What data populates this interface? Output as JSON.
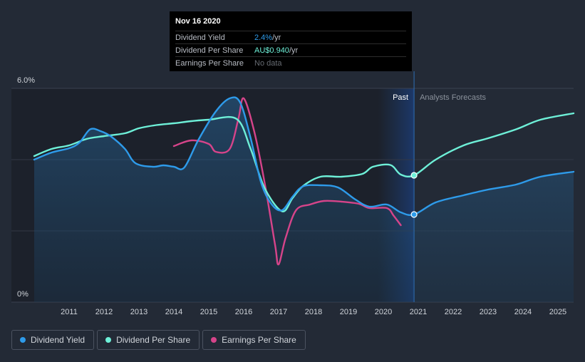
{
  "tooltip": {
    "date": "Nov 16 2020",
    "rows": [
      {
        "label": "Dividend Yield",
        "value": "2.4%",
        "unit": " /yr"
      },
      {
        "label": "Dividend Per Share",
        "value": "AU$0.940",
        "unit": " /yr"
      },
      {
        "label": "Earnings Per Share",
        "value": "No data",
        "unit": ""
      }
    ]
  },
  "legend": [
    {
      "label": "Dividend Yield",
      "color": "#2e9bea"
    },
    {
      "label": "Dividend Per Share",
      "color": "#6ef0d8"
    },
    {
      "label": "Earnings Per Share",
      "color": "#d6448a"
    }
  ],
  "chart_data": {
    "type": "line",
    "title": "",
    "xlabel": "",
    "ylabel": "",
    "y_tick_labels": [
      "6.0%",
      "0%"
    ],
    "ylim": [
      0,
      6.0
    ],
    "xlim": [
      2010.0,
      2025.45
    ],
    "x_ticks": [
      "2011",
      "2012",
      "2013",
      "2014",
      "2015",
      "2016",
      "2017",
      "2018",
      "2019",
      "2020",
      "2021",
      "2022",
      "2023",
      "2024",
      "2025"
    ],
    "past_label": "Past",
    "forecast_label": "Analysts Forecasts",
    "forecast_start": 2020.88,
    "past_shade_start": 2019.85,
    "series": [
      {
        "name": "Dividend Yield",
        "color": "#2e9bea",
        "points": [
          [
            2010.0,
            4.0
          ],
          [
            2010.5,
            4.2
          ],
          [
            2011.0,
            4.32
          ],
          [
            2011.3,
            4.48
          ],
          [
            2011.6,
            4.85
          ],
          [
            2011.9,
            4.8
          ],
          [
            2012.2,
            4.65
          ],
          [
            2012.6,
            4.3
          ],
          [
            2012.9,
            3.9
          ],
          [
            2013.4,
            3.8
          ],
          [
            2013.7,
            3.84
          ],
          [
            2014.0,
            3.8
          ],
          [
            2014.3,
            3.78
          ],
          [
            2014.7,
            4.55
          ],
          [
            2015.2,
            5.35
          ],
          [
            2015.6,
            5.72
          ],
          [
            2015.9,
            5.6
          ],
          [
            2016.2,
            4.6
          ],
          [
            2016.5,
            3.35
          ],
          [
            2016.8,
            2.75
          ],
          [
            2017.1,
            2.58
          ],
          [
            2017.4,
            2.96
          ],
          [
            2017.7,
            3.25
          ],
          [
            2018.2,
            3.28
          ],
          [
            2018.7,
            3.22
          ],
          [
            2019.2,
            2.88
          ],
          [
            2019.6,
            2.68
          ],
          [
            2020.1,
            2.74
          ],
          [
            2020.5,
            2.52
          ],
          [
            2020.88,
            2.46
          ],
          [
            2021.5,
            2.8
          ],
          [
            2022.3,
            3.0
          ],
          [
            2023.0,
            3.16
          ],
          [
            2023.8,
            3.3
          ],
          [
            2024.5,
            3.52
          ],
          [
            2025.45,
            3.66
          ]
        ]
      },
      {
        "name": "Dividend Per Share",
        "color": "#6ef0d8",
        "points": [
          [
            2010.0,
            4.1
          ],
          [
            2010.5,
            4.3
          ],
          [
            2011.0,
            4.4
          ],
          [
            2011.5,
            4.58
          ],
          [
            2012.0,
            4.66
          ],
          [
            2012.6,
            4.74
          ],
          [
            2013.0,
            4.88
          ],
          [
            2013.5,
            4.97
          ],
          [
            2014.0,
            5.02
          ],
          [
            2014.5,
            5.08
          ],
          [
            2015.0,
            5.12
          ],
          [
            2015.8,
            5.14
          ],
          [
            2016.2,
            4.3
          ],
          [
            2016.6,
            3.2
          ],
          [
            2017.1,
            2.55
          ],
          [
            2017.4,
            2.92
          ],
          [
            2017.7,
            3.26
          ],
          [
            2018.2,
            3.52
          ],
          [
            2018.8,
            3.52
          ],
          [
            2019.4,
            3.6
          ],
          [
            2019.7,
            3.8
          ],
          [
            2020.2,
            3.85
          ],
          [
            2020.5,
            3.58
          ],
          [
            2020.88,
            3.56
          ],
          [
            2021.5,
            4.0
          ],
          [
            2022.3,
            4.4
          ],
          [
            2023.0,
            4.6
          ],
          [
            2023.8,
            4.85
          ],
          [
            2024.5,
            5.12
          ],
          [
            2025.45,
            5.3
          ]
        ]
      },
      {
        "name": "Earnings Per Share",
        "color": "#d6448a",
        "points": [
          [
            2014.0,
            4.38
          ],
          [
            2014.5,
            4.54
          ],
          [
            2015.0,
            4.44
          ],
          [
            2015.2,
            4.22
          ],
          [
            2015.6,
            4.3
          ],
          [
            2015.85,
            5.15
          ],
          [
            2016.0,
            5.72
          ],
          [
            2016.3,
            4.8
          ],
          [
            2016.6,
            3.35
          ],
          [
            2016.9,
            1.6
          ],
          [
            2017.0,
            1.06
          ],
          [
            2017.2,
            1.8
          ],
          [
            2017.5,
            2.58
          ],
          [
            2017.9,
            2.74
          ],
          [
            2018.3,
            2.84
          ],
          [
            2018.8,
            2.82
          ],
          [
            2019.3,
            2.76
          ],
          [
            2019.6,
            2.64
          ],
          [
            2020.1,
            2.64
          ],
          [
            2020.3,
            2.42
          ],
          [
            2020.5,
            2.16
          ]
        ]
      }
    ],
    "highlight_points": [
      {
        "series": "Dividend Yield",
        "x": 2020.88,
        "y": 2.46
      },
      {
        "series": "Dividend Per Share",
        "x": 2020.88,
        "y": 3.56
      }
    ]
  }
}
